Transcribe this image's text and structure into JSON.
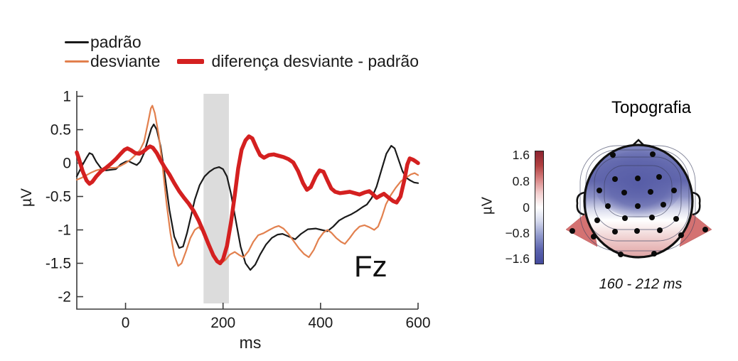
{
  "legend": {
    "items": [
      {
        "label": "padrão",
        "color": "#1a1a1a"
      },
      {
        "label": "desviante",
        "color": "#e2804e"
      },
      {
        "label": "diferença desviante - padrão",
        "color": "#d42020"
      }
    ]
  },
  "chart_data": {
    "type": "line",
    "title": "",
    "xlabel": "ms",
    "ylabel": "µV",
    "channel_label": "Fz",
    "xlim": [
      -100,
      600
    ],
    "ylim": [
      -2.2,
      1.1
    ],
    "grid": false,
    "legend_position": "top-left",
    "xticks": {
      "values": [
        0,
        200,
        400,
        600
      ],
      "labels": [
        "0",
        "200",
        "400",
        "600"
      ]
    },
    "yticks": {
      "values": [
        1,
        0.5,
        0,
        -0.5,
        -1,
        -1.5,
        -2
      ],
      "labels": [
        "1",
        "0.5",
        "0",
        "-0.5",
        "-1",
        "-1.5",
        "-2"
      ]
    },
    "highlight_ms": [
      160,
      212
    ],
    "highlight_color": "#dcdcdc",
    "axis_color": "#3a3a3a",
    "series": [
      {
        "name": "padrão",
        "color": "#1a1a1a",
        "width": 2.2,
        "points": [
          [
            -100,
            -0.2
          ],
          [
            -90,
            -0.05
          ],
          [
            -80,
            0.08
          ],
          [
            -74,
            0.15
          ],
          [
            -68,
            0.13
          ],
          [
            -60,
            0.02
          ],
          [
            -50,
            -0.08
          ],
          [
            -40,
            -0.11
          ],
          [
            -30,
            -0.1
          ],
          [
            -20,
            -0.09
          ],
          [
            -10,
            -0.02
          ],
          [
            0,
            0.02
          ],
          [
            6,
            0.03
          ],
          [
            14,
            0.0
          ],
          [
            23,
            -0.03
          ],
          [
            30,
            0.02
          ],
          [
            38,
            0.15
          ],
          [
            46,
            0.35
          ],
          [
            53,
            0.52
          ],
          [
            58,
            0.58
          ],
          [
            64,
            0.5
          ],
          [
            72,
            0.25
          ],
          [
            80,
            -0.15
          ],
          [
            90,
            -0.7
          ],
          [
            100,
            -1.1
          ],
          [
            110,
            -1.27
          ],
          [
            118,
            -1.25
          ],
          [
            126,
            -1.05
          ],
          [
            134,
            -0.8
          ],
          [
            142,
            -0.55
          ],
          [
            152,
            -0.33
          ],
          [
            162,
            -0.2
          ],
          [
            172,
            -0.13
          ],
          [
            182,
            -0.08
          ],
          [
            192,
            -0.06
          ],
          [
            200,
            -0.09
          ],
          [
            208,
            -0.2
          ],
          [
            216,
            -0.45
          ],
          [
            226,
            -0.85
          ],
          [
            236,
            -1.25
          ],
          [
            246,
            -1.5
          ],
          [
            256,
            -1.6
          ],
          [
            266,
            -1.52
          ],
          [
            276,
            -1.37
          ],
          [
            288,
            -1.22
          ],
          [
            300,
            -1.12
          ],
          [
            312,
            -1.07
          ],
          [
            322,
            -1.06
          ],
          [
            335,
            -1.1
          ],
          [
            348,
            -1.14
          ],
          [
            360,
            -1.06
          ],
          [
            374,
            -0.99
          ],
          [
            390,
            -0.98
          ],
          [
            402,
            -1.0
          ],
          [
            414,
            -1.02
          ],
          [
            426,
            -0.95
          ],
          [
            438,
            -0.86
          ],
          [
            450,
            -0.81
          ],
          [
            462,
            -0.77
          ],
          [
            474,
            -0.72
          ],
          [
            486,
            -0.66
          ],
          [
            495,
            -0.62
          ],
          [
            505,
            -0.52
          ],
          [
            515,
            -0.35
          ],
          [
            525,
            -0.1
          ],
          [
            535,
            0.14
          ],
          [
            545,
            0.26
          ],
          [
            552,
            0.22
          ],
          [
            560,
            0.05
          ],
          [
            568,
            -0.12
          ],
          [
            576,
            -0.22
          ],
          [
            584,
            -0.26
          ],
          [
            592,
            -0.29
          ],
          [
            600,
            -0.3
          ]
        ]
      },
      {
        "name": "desviante",
        "color": "#e2804e",
        "width": 2.2,
        "points": [
          [
            -100,
            -0.25
          ],
          [
            -90,
            -0.22
          ],
          [
            -80,
            -0.18
          ],
          [
            -70,
            -0.14
          ],
          [
            -60,
            -0.11
          ],
          [
            -50,
            -0.09
          ],
          [
            -40,
            -0.08
          ],
          [
            -30,
            -0.07
          ],
          [
            -20,
            -0.07
          ],
          [
            -10,
            -0.04
          ],
          [
            0,
            0.0
          ],
          [
            10,
            0.05
          ],
          [
            20,
            0.12
          ],
          [
            30,
            0.2
          ],
          [
            38,
            0.32
          ],
          [
            46,
            0.6
          ],
          [
            52,
            0.82
          ],
          [
            55,
            0.86
          ],
          [
            60,
            0.75
          ],
          [
            68,
            0.42
          ],
          [
            76,
            -0.05
          ],
          [
            84,
            -0.6
          ],
          [
            92,
            -1.05
          ],
          [
            100,
            -1.38
          ],
          [
            108,
            -1.54
          ],
          [
            115,
            -1.5
          ],
          [
            124,
            -1.32
          ],
          [
            133,
            -1.12
          ],
          [
            142,
            -1.0
          ],
          [
            150,
            -0.96
          ],
          [
            158,
            -1.02
          ],
          [
            168,
            -1.18
          ],
          [
            178,
            -1.35
          ],
          [
            188,
            -1.47
          ],
          [
            196,
            -1.5
          ],
          [
            205,
            -1.45
          ],
          [
            214,
            -1.37
          ],
          [
            224,
            -1.33
          ],
          [
            234,
            -1.38
          ],
          [
            242,
            -1.41
          ],
          [
            252,
            -1.32
          ],
          [
            262,
            -1.18
          ],
          [
            272,
            -1.08
          ],
          [
            283,
            -1.05
          ],
          [
            295,
            -1.0
          ],
          [
            306,
            -0.96
          ],
          [
            314,
            -0.94
          ],
          [
            324,
            -0.98
          ],
          [
            334,
            -1.06
          ],
          [
            344,
            -1.16
          ],
          [
            356,
            -1.28
          ],
          [
            366,
            -1.36
          ],
          [
            376,
            -1.41
          ],
          [
            386,
            -1.3
          ],
          [
            396,
            -1.14
          ],
          [
            406,
            -1.04
          ],
          [
            414,
            -1.0
          ],
          [
            422,
            -1.04
          ],
          [
            432,
            -1.12
          ],
          [
            442,
            -1.18
          ],
          [
            450,
            -1.21
          ],
          [
            460,
            -1.12
          ],
          [
            470,
            -1.02
          ],
          [
            480,
            -0.95
          ],
          [
            490,
            -0.93
          ],
          [
            500,
            -0.96
          ],
          [
            510,
            -1.0
          ],
          [
            518,
            -0.95
          ],
          [
            526,
            -0.8
          ],
          [
            534,
            -0.62
          ],
          [
            544,
            -0.48
          ],
          [
            554,
            -0.37
          ],
          [
            565,
            -0.27
          ],
          [
            575,
            -0.22
          ],
          [
            585,
            -0.17
          ],
          [
            593,
            -0.15
          ],
          [
            600,
            -0.18
          ]
        ]
      },
      {
        "name": "diferença desviante - padrão",
        "color": "#d42020",
        "width": 5.5,
        "points": [
          [
            -100,
            0.16
          ],
          [
            -95,
            0.05
          ],
          [
            -88,
            -0.12
          ],
          [
            -80,
            -0.26
          ],
          [
            -74,
            -0.31
          ],
          [
            -68,
            -0.28
          ],
          [
            -60,
            -0.2
          ],
          [
            -50,
            -0.12
          ],
          [
            -40,
            -0.07
          ],
          [
            -30,
            -0.01
          ],
          [
            -20,
            0.06
          ],
          [
            -10,
            0.14
          ],
          [
            -2,
            0.2
          ],
          [
            4,
            0.22
          ],
          [
            12,
            0.19
          ],
          [
            20,
            0.15
          ],
          [
            28,
            0.14
          ],
          [
            36,
            0.17
          ],
          [
            44,
            0.22
          ],
          [
            50,
            0.25
          ],
          [
            56,
            0.23
          ],
          [
            64,
            0.15
          ],
          [
            72,
            0.04
          ],
          [
            80,
            -0.06
          ],
          [
            90,
            -0.17
          ],
          [
            100,
            -0.3
          ],
          [
            110,
            -0.42
          ],
          [
            120,
            -0.52
          ],
          [
            130,
            -0.61
          ],
          [
            140,
            -0.72
          ],
          [
            150,
            -0.86
          ],
          [
            160,
            -1.03
          ],
          [
            170,
            -1.21
          ],
          [
            180,
            -1.38
          ],
          [
            188,
            -1.47
          ],
          [
            194,
            -1.5
          ],
          [
            200,
            -1.44
          ],
          [
            208,
            -1.24
          ],
          [
            216,
            -0.9
          ],
          [
            224,
            -0.48
          ],
          [
            231,
            -0.08
          ],
          [
            238,
            0.2
          ],
          [
            246,
            0.34
          ],
          [
            253,
            0.4
          ],
          [
            260,
            0.37
          ],
          [
            268,
            0.24
          ],
          [
            276,
            0.12
          ],
          [
            284,
            0.08
          ],
          [
            294,
            0.12
          ],
          [
            304,
            0.13
          ],
          [
            314,
            0.11
          ],
          [
            324,
            0.09
          ],
          [
            334,
            0.06
          ],
          [
            344,
            0.01
          ],
          [
            354,
            -0.12
          ],
          [
            364,
            -0.3
          ],
          [
            372,
            -0.4
          ],
          [
            380,
            -0.36
          ],
          [
            390,
            -0.2
          ],
          [
            398,
            -0.11
          ],
          [
            406,
            -0.13
          ],
          [
            414,
            -0.26
          ],
          [
            422,
            -0.38
          ],
          [
            430,
            -0.43
          ],
          [
            440,
            -0.45
          ],
          [
            450,
            -0.44
          ],
          [
            460,
            -0.43
          ],
          [
            470,
            -0.45
          ],
          [
            480,
            -0.47
          ],
          [
            490,
            -0.44
          ],
          [
            500,
            -0.42
          ],
          [
            508,
            -0.47
          ],
          [
            515,
            -0.52
          ],
          [
            522,
            -0.49
          ],
          [
            530,
            -0.46
          ],
          [
            540,
            -0.52
          ],
          [
            549,
            -0.57
          ],
          [
            556,
            -0.59
          ],
          [
            564,
            -0.5
          ],
          [
            572,
            -0.25
          ],
          [
            578,
            -0.02
          ],
          [
            583,
            0.07
          ],
          [
            590,
            0.05
          ],
          [
            596,
            0.02
          ],
          [
            600,
            0.0
          ]
        ]
      }
    ]
  },
  "topography": {
    "title": "Topografia",
    "time_window": "160 - 212 ms",
    "colorbar": {
      "label": "µV",
      "ticks": [
        "1.6",
        "0.8",
        "0",
        "−0.8",
        "−1.6"
      ],
      "tick_values": [
        1.6,
        0.8,
        0,
        -0.8,
        -1.6
      ],
      "gradient": [
        "#8c2330",
        "#b14040",
        "#d98585",
        "#f3d0d0",
        "#ffffff",
        "#d3d7ec",
        "#9099cc",
        "#5b63ae",
        "#434a9c"
      ]
    },
    "map_colors": {
      "negative_center": "#5a60a8",
      "zero": "#ffffff",
      "positive_edge": "#d47272"
    },
    "electrodes": [
      [
        74,
        35
      ],
      [
        130,
        34
      ],
      [
        77,
        69
      ],
      [
        109,
        68
      ],
      [
        139,
        66
      ],
      [
        55,
        85
      ],
      [
        90,
        88
      ],
      [
        127,
        87
      ],
      [
        160,
        85
      ],
      [
        67,
        107
      ],
      [
        109,
        107
      ],
      [
        145,
        105
      ],
      [
        52,
        127
      ],
      [
        91,
        124
      ],
      [
        129,
        123
      ],
      [
        163,
        125
      ],
      [
        77,
        143
      ],
      [
        108,
        142
      ],
      [
        140,
        141
      ],
      [
        47,
        150
      ],
      [
        170,
        148
      ],
      [
        85,
        175
      ],
      [
        132,
        174
      ],
      [
        17,
        142
      ],
      [
        204,
        140
      ]
    ]
  }
}
